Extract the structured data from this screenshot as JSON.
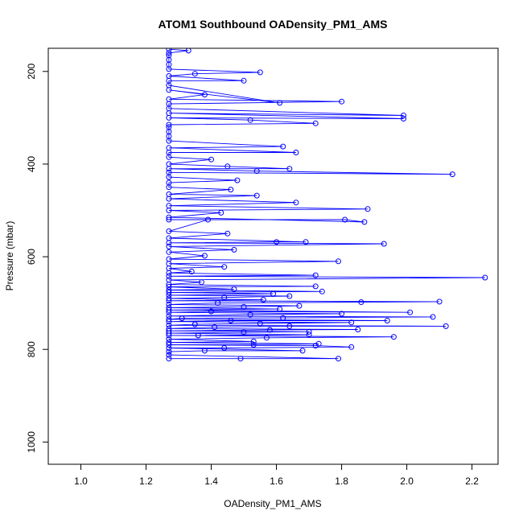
{
  "chart_data": {
    "type": "line",
    "title": "ATOM1 Southbound OADensity_PM1_AMS",
    "xlabel": "OADensity_PM1_AMS",
    "ylabel": "Pressure (mbar)",
    "xlim": [
      0.9,
      2.28
    ],
    "ylim": [
      1048,
      150
    ],
    "y_reversed": true,
    "grid": false,
    "x_ticks": [
      1.0,
      1.2,
      1.4,
      1.6,
      1.8,
      2.0,
      2.2
    ],
    "x_tick_labels": [
      "1.0",
      "1.2",
      "1.4",
      "1.6",
      "1.8",
      "2.0",
      "2.2"
    ],
    "y_ticks": [
      200,
      400,
      600,
      800,
      1000
    ],
    "y_tick_labels": [
      "200",
      "400",
      "600",
      "800",
      "1000"
    ],
    "series": [
      {
        "color": "#0000ff",
        "marker": "open-circle",
        "points": [
          [
            1.27,
            820
          ],
          [
            1.49,
            820
          ],
          [
            1.79,
            820
          ],
          [
            1.27,
            812
          ],
          [
            1.27,
            805
          ],
          [
            1.38,
            803
          ],
          [
            1.68,
            803
          ],
          [
            1.27,
            797
          ],
          [
            1.44,
            797
          ],
          [
            1.83,
            795
          ],
          [
            1.72,
            792
          ],
          [
            1.27,
            790
          ],
          [
            1.53,
            790
          ],
          [
            1.73,
            788
          ],
          [
            1.27,
            785
          ],
          [
            1.53,
            783
          ],
          [
            1.27,
            778
          ],
          [
            1.57,
            775
          ],
          [
            1.96,
            773
          ],
          [
            1.27,
            770
          ],
          [
            1.36,
            770
          ],
          [
            1.7,
            768
          ],
          [
            1.27,
            765
          ],
          [
            1.5,
            763
          ],
          [
            1.7,
            762
          ],
          [
            1.27,
            760
          ],
          [
            1.58,
            758
          ],
          [
            1.85,
            757
          ],
          [
            1.27,
            755
          ],
          [
            1.41,
            752
          ],
          [
            1.64,
            750
          ],
          [
            2.12,
            750
          ],
          [
            1.27,
            748
          ],
          [
            1.35,
            746
          ],
          [
            1.55,
            744
          ],
          [
            1.83,
            742
          ],
          [
            1.27,
            740
          ],
          [
            1.46,
            738
          ],
          [
            1.94,
            738
          ],
          [
            1.27,
            735
          ],
          [
            1.31,
            733
          ],
          [
            1.62,
            732
          ],
          [
            2.08,
            730
          ],
          [
            1.27,
            728
          ],
          [
            1.52,
            725
          ],
          [
            1.8,
            723
          ],
          [
            1.27,
            720
          ],
          [
            1.4,
            718
          ],
          [
            2.01,
            720
          ],
          [
            1.27,
            715
          ],
          [
            1.61,
            713
          ],
          [
            1.27,
            710
          ],
          [
            1.5,
            708
          ],
          [
            1.67,
            706
          ],
          [
            1.27,
            703
          ],
          [
            1.42,
            700
          ],
          [
            1.86,
            698
          ],
          [
            2.1,
            697
          ],
          [
            1.27,
            695
          ],
          [
            1.56,
            693
          ],
          [
            1.27,
            690
          ],
          [
            1.44,
            688
          ],
          [
            1.64,
            685
          ],
          [
            1.27,
            683
          ],
          [
            1.59,
            680
          ],
          [
            1.27,
            677
          ],
          [
            1.74,
            675
          ],
          [
            1.27,
            672
          ],
          [
            1.47,
            670
          ],
          [
            1.27,
            665
          ],
          [
            1.72,
            664
          ],
          [
            1.27,
            660
          ],
          [
            1.37,
            655
          ],
          [
            1.27,
            650
          ],
          [
            2.24,
            645
          ],
          [
            1.27,
            642
          ],
          [
            1.72,
            640
          ],
          [
            1.27,
            635
          ],
          [
            1.34,
            632
          ],
          [
            1.27,
            625
          ],
          [
            1.44,
            622
          ],
          [
            1.27,
            615
          ],
          [
            1.79,
            610
          ],
          [
            1.27,
            605
          ],
          [
            1.38,
            598
          ],
          [
            1.27,
            590
          ],
          [
            1.47,
            585
          ],
          [
            1.27,
            578
          ],
          [
            1.93,
            572
          ],
          [
            1.27,
            570
          ],
          [
            1.6,
            568
          ],
          [
            1.69,
            568
          ],
          [
            1.27,
            560
          ],
          [
            1.45,
            550
          ],
          [
            1.27,
            545
          ],
          [
            1.39,
            520
          ],
          [
            1.27,
            520
          ],
          [
            1.81,
            520
          ],
          [
            1.87,
            525
          ],
          [
            1.27,
            515
          ],
          [
            1.43,
            505
          ],
          [
            1.27,
            500
          ],
          [
            1.88,
            497
          ],
          [
            1.27,
            490
          ],
          [
            1.66,
            483
          ],
          [
            1.27,
            475
          ],
          [
            1.54,
            468
          ],
          [
            1.27,
            465
          ],
          [
            1.46,
            455
          ],
          [
            1.27,
            450
          ],
          [
            1.27,
            440
          ],
          [
            1.48,
            435
          ],
          [
            1.27,
            428
          ],
          [
            1.27,
            418
          ],
          [
            2.14,
            422
          ],
          [
            1.54,
            415
          ],
          [
            1.27,
            410
          ],
          [
            1.64,
            410
          ],
          [
            1.45,
            405
          ],
          [
            1.27,
            400
          ],
          [
            1.4,
            390
          ],
          [
            1.27,
            385
          ],
          [
            1.27,
            375
          ],
          [
            1.66,
            375
          ],
          [
            1.27,
            365
          ],
          [
            1.62,
            362
          ],
          [
            1.27,
            350
          ],
          [
            1.27,
            340
          ],
          [
            1.27,
            330
          ],
          [
            1.27,
            320
          ],
          [
            1.27,
            315
          ],
          [
            1.72,
            312
          ],
          [
            1.52,
            305
          ],
          [
            1.27,
            300
          ],
          [
            1.99,
            302
          ],
          [
            1.27,
            290
          ],
          [
            1.99,
            295
          ],
          [
            1.27,
            280
          ],
          [
            1.27,
            270
          ],
          [
            1.8,
            265
          ],
          [
            1.27,
            260
          ],
          [
            1.38,
            250
          ],
          [
            1.27,
            240
          ],
          [
            1.61,
            268
          ],
          [
            1.27,
            230
          ],
          [
            1.27,
            220
          ],
          [
            1.5,
            220
          ],
          [
            1.27,
            210
          ],
          [
            1.35,
            205
          ],
          [
            1.55,
            202
          ],
          [
            1.27,
            195
          ],
          [
            1.27,
            185
          ],
          [
            1.27,
            175
          ],
          [
            1.27,
            165
          ],
          [
            1.27,
            160
          ],
          [
            1.33,
            155
          ],
          [
            1.27,
            152
          ]
        ]
      }
    ]
  }
}
